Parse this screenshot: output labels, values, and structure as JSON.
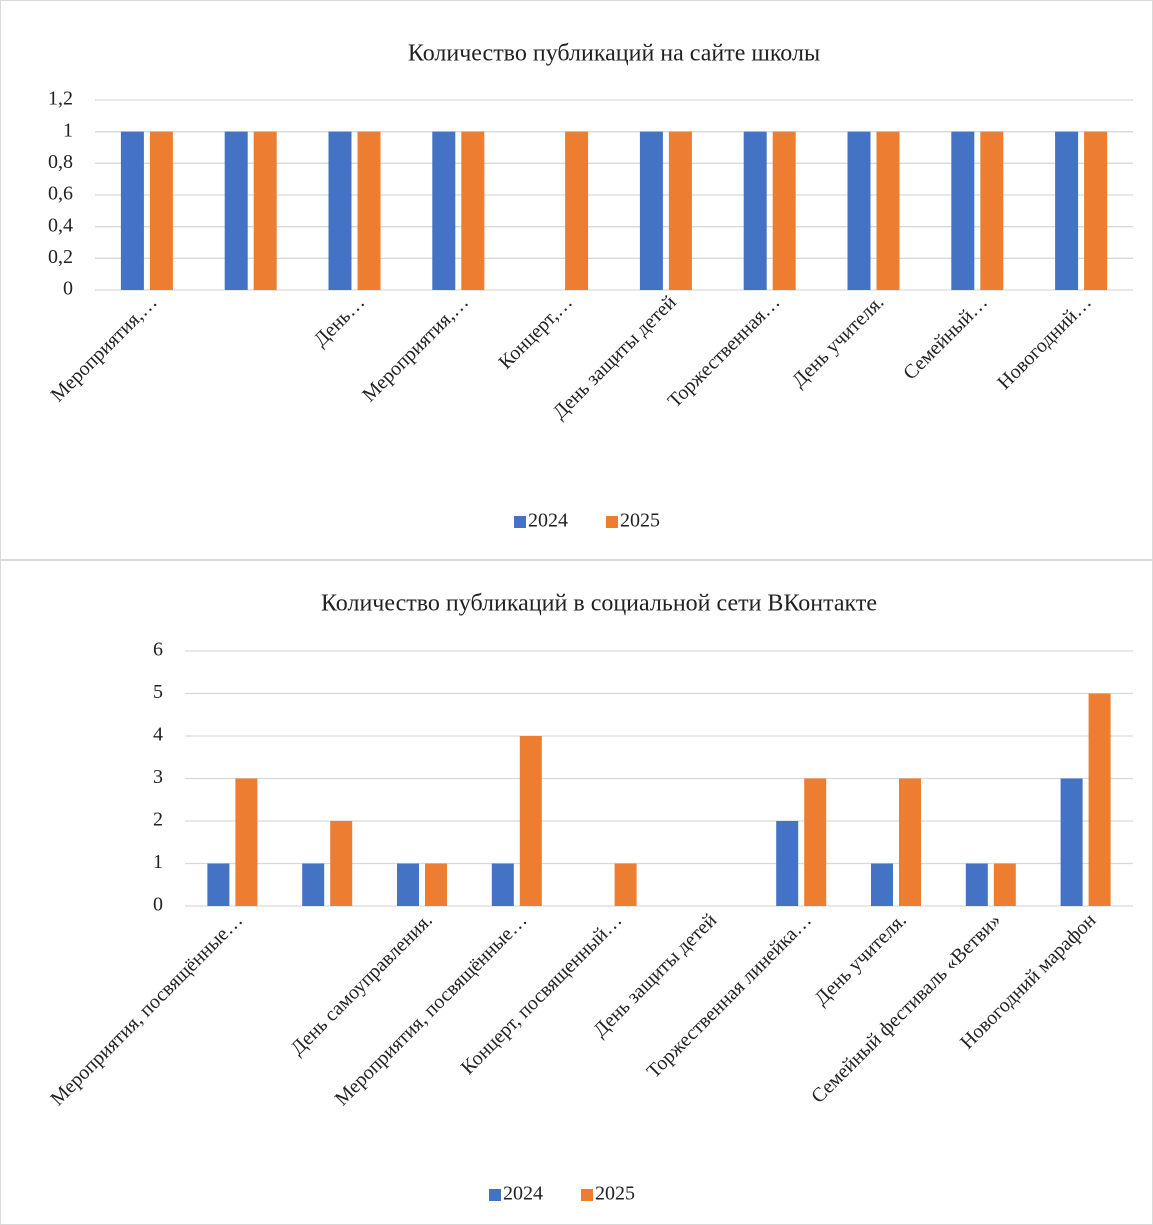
{
  "chart_data": [
    {
      "type": "bar",
      "title": "Количество публикаций на сайте школы",
      "categories": [
        "Мероприятия,…",
        null,
        "День…",
        "Мероприятия,…",
        "Концерт,…",
        "День защиты детей",
        "Торжественная…",
        "День учителя.",
        "Семейный…",
        "Новогодний…"
      ],
      "series": [
        {
          "name": "2024",
          "color": "#4472c4",
          "values": [
            1,
            1,
            1,
            1,
            0,
            1,
            1,
            1,
            1,
            1
          ]
        },
        {
          "name": "2025",
          "color": "#ed7d31",
          "values": [
            1,
            1,
            1,
            1,
            1,
            1,
            1,
            1,
            1,
            1
          ]
        }
      ],
      "ylim": [
        0,
        1.2
      ],
      "yticks": [
        0,
        {
          "value": 0.2,
          "label": "0,2"
        },
        {
          "value": 0.4,
          "label": "0,4"
        },
        {
          "value": 0.6,
          "label": "0,6"
        },
        {
          "value": 0.8,
          "label": "0,8"
        },
        1,
        {
          "value": 1.2,
          "label": "1,2"
        }
      ],
      "grid": true,
      "legend": "bottom"
    },
    {
      "type": "bar",
      "title": "Количество публикаций в социальной сети ВКонтакте",
      "categories": [
        "Мероприятия, посвящённые…",
        null,
        "День самоуправления.",
        "Мероприятия, посвящённые…",
        "Концерт, посвященный…",
        "День защиты детей",
        "Торжественная линейка…",
        "День учителя.",
        "Семейный фестиваль «Ветви»",
        "Новогодний марафон"
      ],
      "series": [
        {
          "name": "2024",
          "color": "#4472c4",
          "values": [
            1,
            1,
            1,
            1,
            0,
            0,
            2,
            1,
            1,
            3
          ]
        },
        {
          "name": "2025",
          "color": "#ed7d31",
          "values": [
            3,
            2,
            1,
            4,
            1,
            0,
            3,
            3,
            1,
            5
          ]
        }
      ],
      "ylim": [
        0,
        6
      ],
      "yticks": [
        0,
        1,
        2,
        3,
        4,
        5,
        6
      ],
      "grid": true,
      "legend": "bottom"
    }
  ]
}
